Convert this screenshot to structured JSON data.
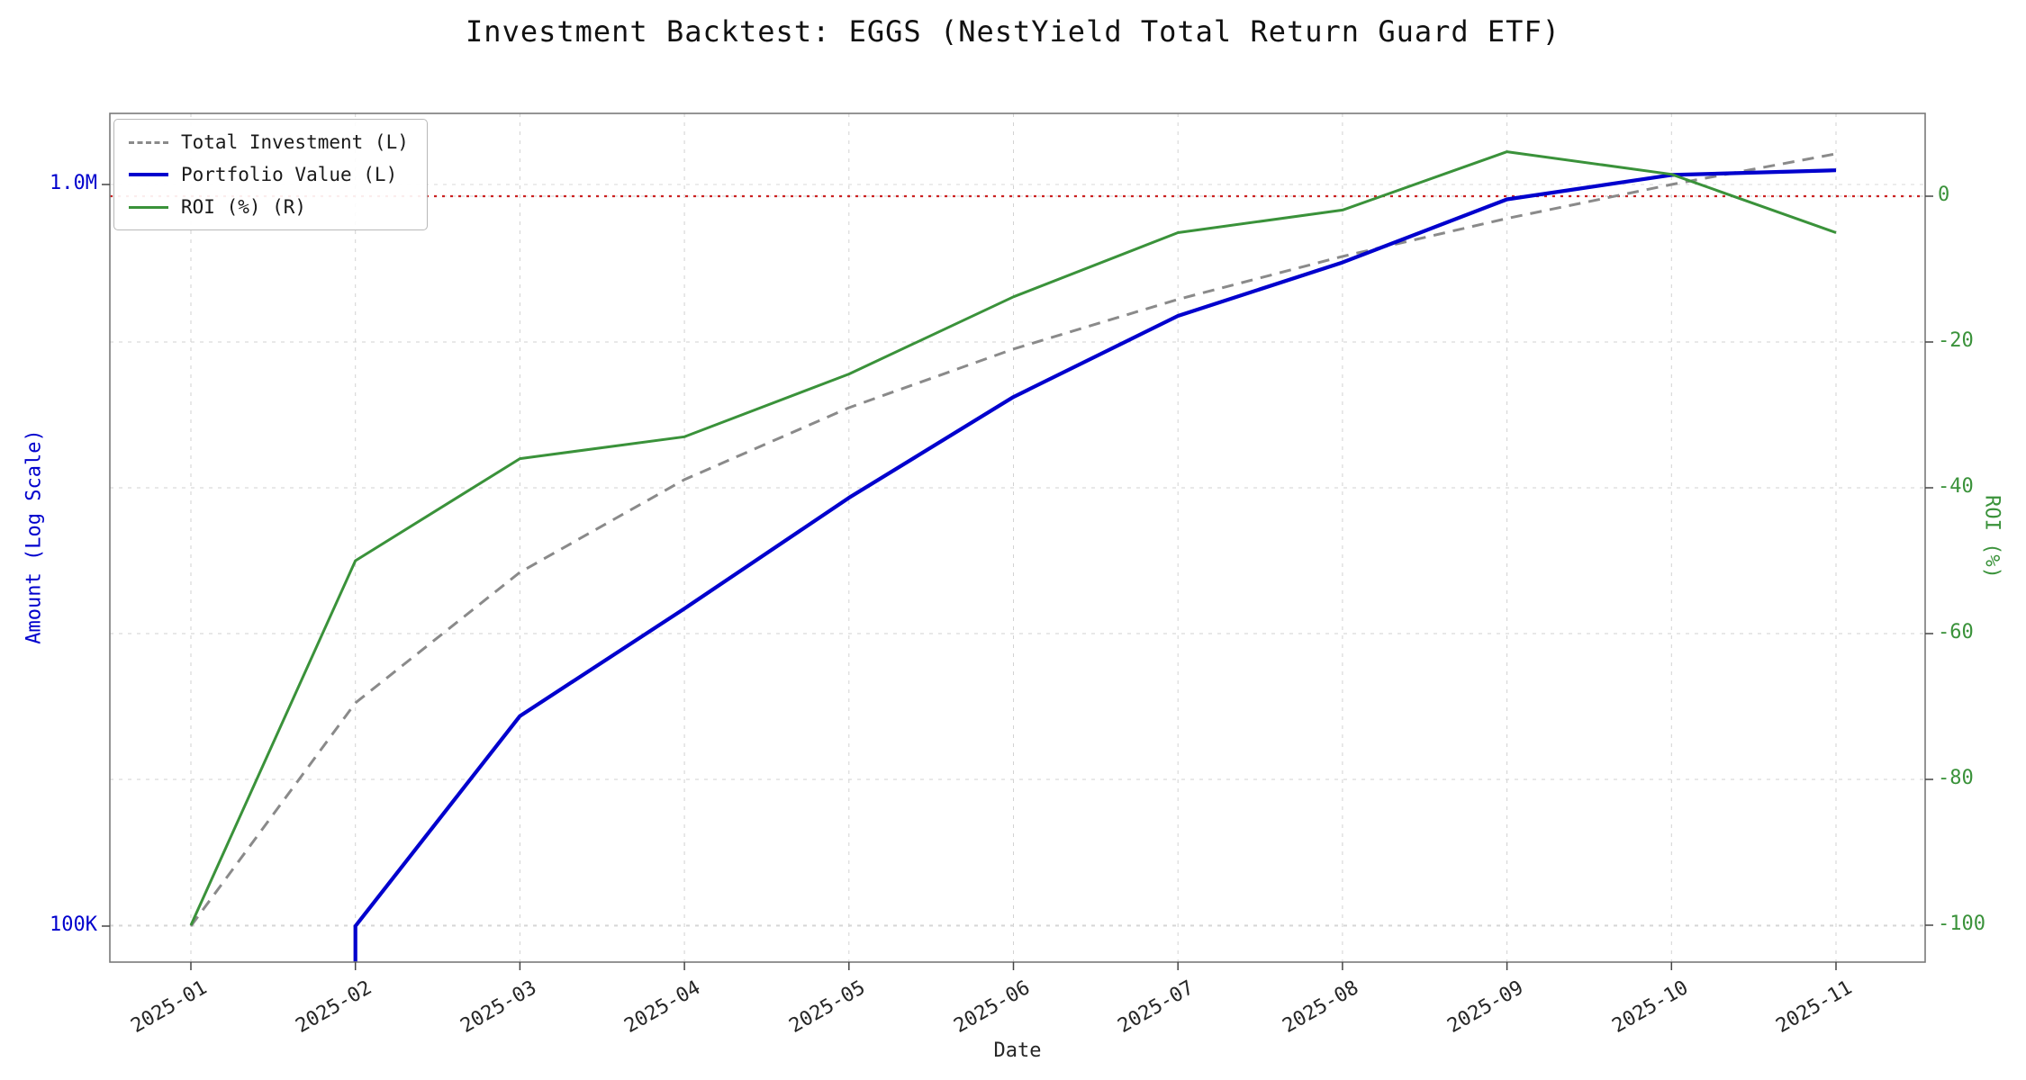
{
  "chart_data": {
    "type": "line",
    "title": "Investment Backtest: EGGS (NestYield Total Return Guard ETF)",
    "xlabel": "Date",
    "ylabel_left": "Amount (Log Scale)",
    "ylabel_right": "ROI (%)",
    "x": [
      "2025-01",
      "2025-02",
      "2025-03",
      "2025-04",
      "2025-05",
      "2025-06",
      "2025-07",
      "2025-08",
      "2025-09",
      "2025-10",
      "2025-11"
    ],
    "left_axis": {
      "scale": "log",
      "ticks": [
        {
          "label": "1.0M",
          "value": 1000000
        },
        {
          "label": "100K",
          "value": 100000
        }
      ]
    },
    "right_axis": {
      "ticks": [
        0,
        -20,
        -40,
        -60,
        -80,
        -100
      ]
    },
    "series": [
      {
        "name": "Total Investment (L)",
        "axis": "left",
        "style": "dashed",
        "color": "#8a8a8a",
        "width": 3,
        "values": [
          100000,
          200000,
          300000,
          400000,
          500000,
          600000,
          700000,
          800000,
          900000,
          1000000,
          1100000
        ]
      },
      {
        "name": "Portfolio Value (L)",
        "axis": "left",
        "style": "solid",
        "color": "#0000cd",
        "width": 4.2,
        "starts_below_axis": true,
        "values": [
          null,
          100000,
          192000,
          268000,
          378000,
          517000,
          665000,
          785000,
          955000,
          1030000,
          1045000
        ]
      },
      {
        "name": "ROI (%) (R)",
        "axis": "right",
        "style": "solid",
        "color": "#3a923a",
        "width": 3,
        "values": [
          -100,
          -50,
          -36,
          -33,
          -24.4,
          -13.8,
          -5,
          -1.9,
          6.1,
          3,
          -5
        ]
      }
    ],
    "zero_line": {
      "axis": "right",
      "value": 0,
      "color": "#cc2222",
      "style": "dotted"
    },
    "grid": true,
    "legend_position": "upper left"
  }
}
